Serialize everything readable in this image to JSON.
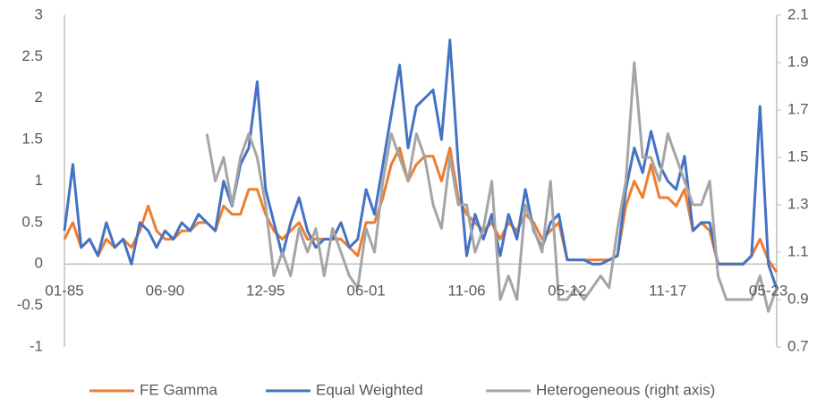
{
  "chart_data": {
    "type": "line",
    "categories": [
      "01-85",
      null,
      null,
      null,
      null,
      null,
      null,
      null,
      null,
      null,
      null,
      null,
      "06-90",
      null,
      null,
      null,
      null,
      null,
      null,
      null,
      null,
      null,
      null,
      null,
      "12-95",
      null,
      null,
      null,
      null,
      null,
      null,
      null,
      null,
      null,
      null,
      null,
      "06-01",
      null,
      null,
      null,
      null,
      null,
      null,
      null,
      null,
      null,
      null,
      null,
      "11-06",
      null,
      null,
      null,
      null,
      null,
      null,
      null,
      null,
      null,
      null,
      null,
      "05-12",
      null,
      null,
      null,
      null,
      null,
      null,
      null,
      null,
      null,
      null,
      null,
      "11-17",
      null,
      null,
      null,
      null,
      null,
      null,
      null,
      null,
      null,
      null,
      null,
      "05-23",
      null
    ],
    "series": [
      {
        "name": "FE Gamma",
        "color": "#ED7D31",
        "values": [
          0.3,
          0.5,
          0.2,
          0.3,
          0.1,
          0.3,
          0.2,
          0.3,
          0.2,
          0.4,
          0.7,
          0.4,
          0.3,
          0.3,
          0.4,
          0.4,
          0.5,
          0.5,
          0.4,
          0.7,
          0.6,
          0.6,
          0.9,
          0.9,
          0.6,
          0.4,
          0.3,
          0.4,
          0.5,
          0.3,
          0.3,
          0.3,
          0.3,
          0.3,
          0.2,
          0.1,
          0.5,
          0.5,
          0.8,
          1.2,
          1.4,
          1.0,
          1.2,
          1.3,
          1.3,
          1.0,
          1.4,
          0.8,
          0.6,
          0.5,
          0.4,
          0.5,
          0.3,
          0.5,
          0.4,
          0.6,
          0.5,
          0.3,
          0.4,
          0.5,
          0.05,
          0.05,
          0.05,
          0.05,
          0.05,
          0.05,
          0.1,
          0.7,
          1.0,
          0.8,
          1.2,
          0.8,
          0.8,
          0.7,
          0.9,
          0.4,
          0.5,
          0.4,
          0.0,
          0.0,
          0.0,
          0.0,
          0.1,
          0.3,
          0.05,
          -0.1
        ]
      },
      {
        "name": "Equal Weighted",
        "color": "#4472C4",
        "values": [
          0.4,
          1.2,
          0.2,
          0.3,
          0.1,
          0.5,
          0.2,
          0.3,
          0.0,
          0.5,
          0.4,
          0.2,
          0.4,
          0.3,
          0.5,
          0.4,
          0.6,
          0.5,
          0.4,
          1.0,
          0.7,
          1.2,
          1.4,
          2.2,
          0.9,
          0.5,
          0.1,
          0.5,
          0.8,
          0.4,
          0.2,
          0.3,
          0.3,
          0.5,
          0.2,
          0.3,
          0.9,
          0.6,
          1.2,
          1.8,
          2.4,
          1.4,
          1.9,
          2.0,
          2.1,
          1.5,
          2.7,
          1.2,
          0.1,
          0.6,
          0.3,
          0.6,
          0.1,
          0.6,
          0.3,
          0.9,
          0.4,
          0.2,
          0.5,
          0.6,
          0.05,
          0.05,
          0.05,
          0.0,
          0.0,
          0.05,
          0.1,
          0.9,
          1.4,
          1.1,
          1.6,
          1.2,
          1.0,
          0.9,
          1.3,
          0.4,
          0.5,
          0.5,
          0.0,
          0.0,
          0.0,
          0.0,
          0.1,
          1.9,
          0.0,
          -0.3
        ]
      },
      {
        "name": "Heterogeneous (right axis)",
        "color": "#A5A5A5",
        "axis": "y2",
        "values": [
          null,
          null,
          null,
          null,
          null,
          null,
          null,
          null,
          null,
          null,
          null,
          null,
          null,
          null,
          null,
          null,
          null,
          1.6,
          1.4,
          1.5,
          1.3,
          1.5,
          1.6,
          1.5,
          1.3,
          1.0,
          1.1,
          1.0,
          1.2,
          1.1,
          1.2,
          1.0,
          1.2,
          1.1,
          1.0,
          0.95,
          1.2,
          1.1,
          1.4,
          1.6,
          1.5,
          1.4,
          1.6,
          1.5,
          1.3,
          1.2,
          1.5,
          1.3,
          1.3,
          1.1,
          1.2,
          1.4,
          0.9,
          1.0,
          0.9,
          1.3,
          1.2,
          1.1,
          1.4,
          0.9,
          0.9,
          0.95,
          0.9,
          0.95,
          1.0,
          0.95,
          1.2,
          1.4,
          1.9,
          1.5,
          1.5,
          1.4,
          1.6,
          1.5,
          1.4,
          1.3,
          1.3,
          1.4,
          1.0,
          0.9,
          0.9,
          0.9,
          0.9,
          1.0,
          0.85,
          0.95
        ]
      }
    ],
    "ylim": [
      -1,
      3
    ],
    "yticks": [
      -1,
      -0.5,
      0,
      0.5,
      1,
      1.5,
      2,
      2.5,
      3
    ],
    "y2lim": [
      0.7,
      2.1
    ],
    "y2ticks": [
      0.7,
      0.9,
      1.1,
      1.3,
      1.5,
      1.7,
      1.9,
      2.1
    ],
    "grid": false,
    "legend": "bottom"
  }
}
